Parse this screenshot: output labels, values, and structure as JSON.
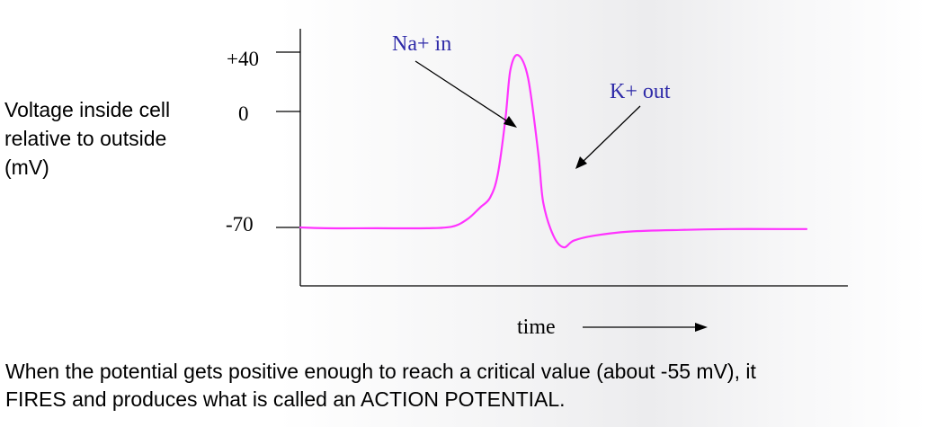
{
  "chart_data": {
    "type": "line",
    "ylabel_lines": [
      "Voltage inside cell",
      "relative to outside",
      "(mV)"
    ],
    "xlabel": "time",
    "y_tick_labels": [
      {
        "label": "+40",
        "value": 40
      },
      {
        "label": "0",
        "value": 0
      },
      {
        "label": "-70",
        "value": -70
      }
    ],
    "annotations": [
      {
        "text": "Na+ in",
        "points_to": "rising phase"
      },
      {
        "text": "K+ out",
        "points_to": "falling phase"
      }
    ],
    "series": [
      {
        "color": "#ff33ff",
        "x": [
          0,
          5,
          15,
          25,
          30,
          33,
          35.5,
          37.5,
          39,
          40.5,
          41.5,
          43,
          45,
          47,
          48,
          50,
          52,
          54,
          58,
          65,
          75,
          85,
          95,
          100
        ],
        "y": [
          -70,
          -70.5,
          -70.5,
          -70.5,
          -69.5,
          -65,
          -58,
          -52,
          -38,
          -5,
          25,
          34,
          20,
          -25,
          -55,
          -75,
          -82,
          -78,
          -75,
          -72.5,
          -71.5,
          -71,
          -71,
          -71
        ]
      }
    ],
    "ylim": [
      -100,
      50
    ],
    "grid": false
  },
  "caption": {
    "line1": "When the potential gets positive enough to reach a critical value (about -55 mV), it",
    "line2": "FIRES and produces what is called an ACTION POTENTIAL."
  },
  "colors": {
    "trace": "#ff33ff",
    "annotation_text": "#2e2aa8"
  }
}
